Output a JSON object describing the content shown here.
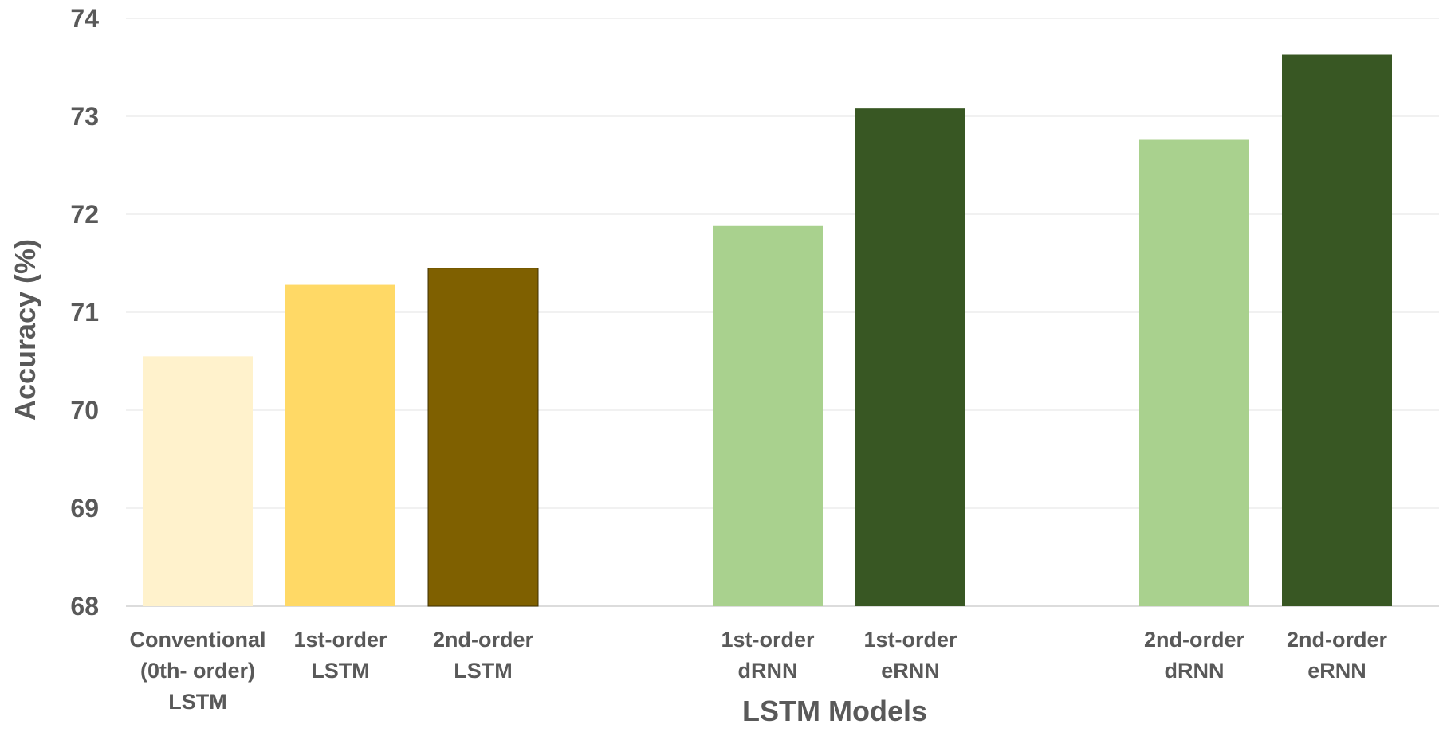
{
  "chart_data": {
    "type": "bar",
    "title": "",
    "xlabel": "LSTM Models",
    "ylabel": "Accuracy (%)",
    "ylim": [
      68,
      74
    ],
    "yticks": [
      "68",
      "69",
      "70",
      "71",
      "72",
      "73",
      "74"
    ],
    "grid": true,
    "bars": [
      {
        "label": [
          "Conventional",
          "(0th- order)",
          "LSTM"
        ],
        "value": 70.55,
        "color": "#FFF2CC",
        "group": 0
      },
      {
        "label": [
          "1st-order",
          "LSTM"
        ],
        "value": 71.28,
        "color": "#FFD966",
        "group": 0
      },
      {
        "label": [
          "2nd-order",
          "LSTM"
        ],
        "value": 71.45,
        "color": "#7F6000",
        "group": 0
      },
      {
        "label": [
          "1st-order",
          "dRNN"
        ],
        "value": 71.88,
        "color": "#A9D18E",
        "group": 1
      },
      {
        "label": [
          "1st-order",
          "eRNN"
        ],
        "value": 73.08,
        "color": "#385723",
        "group": 1
      },
      {
        "label": [
          "2nd-order",
          "dRNN"
        ],
        "value": 72.76,
        "color": "#A9D18E",
        "group": 2
      },
      {
        "label": [
          "2nd-order",
          "eRNN"
        ],
        "value": 73.63,
        "color": "#385723",
        "group": 2
      }
    ]
  }
}
